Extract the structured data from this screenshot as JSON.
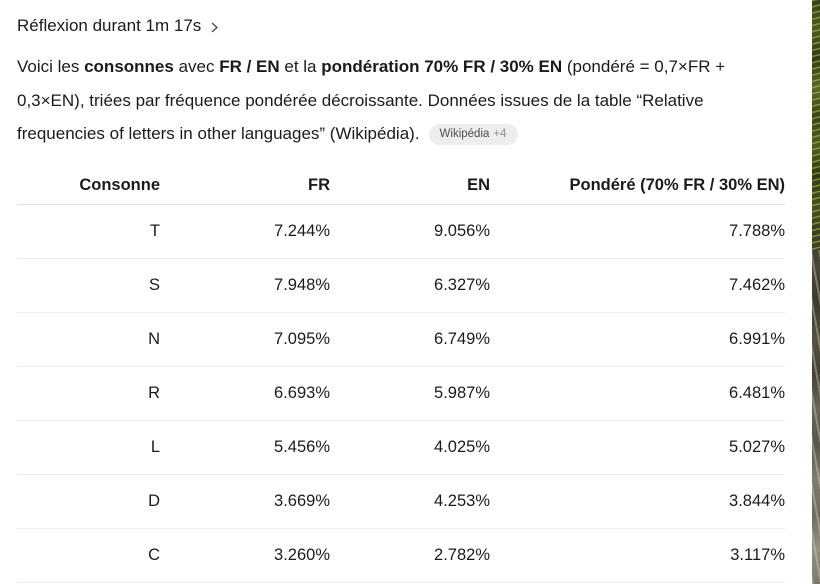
{
  "thinking": {
    "label": "Réflexion durant 1m 17s"
  },
  "message": {
    "segments": [
      {
        "text": "Voici les ",
        "bold": false
      },
      {
        "text": "consonnes",
        "bold": true
      },
      {
        "text": " avec ",
        "bold": false
      },
      {
        "text": "FR / EN",
        "bold": true
      },
      {
        "text": " et la ",
        "bold": false
      },
      {
        "text": "pondération 70% FR / 30% EN",
        "bold": true
      },
      {
        "text": " (pondéré = 0,7×FR + 0,3×EN), triées par fréquence pondérée décroissante. Données issues de la table “Relative frequencies of letters in other languages” (Wikipédia).",
        "bold": false
      }
    ],
    "citation": {
      "source": "Wikipédia",
      "more": "+4"
    }
  },
  "table": {
    "headers": [
      "Consonne",
      "FR",
      "EN",
      "Pondéré (70% FR / 30% EN)"
    ],
    "rows": [
      [
        "T",
        "7.244%",
        "9.056%",
        "7.788%"
      ],
      [
        "S",
        "7.948%",
        "6.327%",
        "7.462%"
      ],
      [
        "N",
        "7.095%",
        "6.749%",
        "6.991%"
      ],
      [
        "R",
        "6.693%",
        "5.987%",
        "6.481%"
      ],
      [
        "L",
        "5.456%",
        "4.025%",
        "5.027%"
      ],
      [
        "D",
        "3.669%",
        "4.253%",
        "3.844%"
      ],
      [
        "C",
        "3.260%",
        "2.782%",
        "3.117%"
      ]
    ]
  },
  "colors": {
    "text": "#1b1b1b",
    "row_divider": "#ededed",
    "header_divider": "#dedede",
    "badge_background": "#ededed",
    "badge_text": "#4f4f4f"
  }
}
